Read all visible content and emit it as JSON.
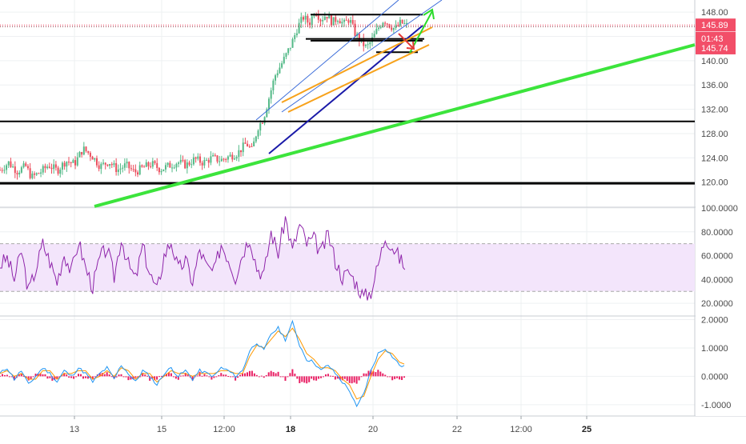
{
  "colors": {
    "background": "#ffffff",
    "grid": "#eef0f2",
    "bull_candle": "#53b987",
    "bear_candle": "#eb4d5c",
    "green_trend": "#3ce43c",
    "black_level": "#000000",
    "blue_channel": "#3b6cd9",
    "navy_trend": "#1a1aa8",
    "orange_channel": "#f7a21b",
    "current_price_tag": "#f24e68",
    "rsi_line": "#8e24aa",
    "rsi_band": "#f3e5fb",
    "macd_line": "#2196f3",
    "signal_line": "#ff9800",
    "histogram": "#e91e63",
    "arrow_green": "#2bdb2b",
    "arrow_red": "#e53935"
  },
  "chart_data": [
    {
      "type": "candlestick",
      "panel": "price",
      "y_range": [
        116.0,
        150.0
      ],
      "y_ticks": [
        "148.00",
        "144.00",
        "140.00",
        "136.00",
        "132.00",
        "128.00",
        "124.00",
        "120.00"
      ],
      "y_tick_values": [
        148,
        144,
        140,
        136,
        132,
        128,
        124,
        120
      ],
      "price_tags": [
        {
          "label": "145.89",
          "value": 145.89
        },
        {
          "label": "01:43",
          "value": 143.7
        },
        {
          "label": "145.74",
          "value": 142.1
        }
      ],
      "close_path": [
        [
          0,
          122.0
        ],
        [
          6,
          123.2
        ],
        [
          12,
          121.8
        ],
        [
          18,
          122.6
        ],
        [
          22,
          120.8
        ],
        [
          28,
          121.6
        ],
        [
          34,
          122.8
        ],
        [
          40,
          121.9
        ],
        [
          46,
          123.5
        ],
        [
          52,
          123.0
        ],
        [
          58,
          125.5
        ],
        [
          64,
          124.4
        ],
        [
          70,
          122.6
        ],
        [
          76,
          123.4
        ],
        [
          82,
          122.0
        ],
        [
          88,
          122.8
        ],
        [
          94,
          121.6
        ],
        [
          100,
          122.4
        ],
        [
          106,
          123.0
        ],
        [
          112,
          122.1
        ],
        [
          118,
          122.7
        ],
        [
          124,
          123.3
        ],
        [
          130,
          122.8
        ],
        [
          136,
          123.8
        ],
        [
          142,
          123.2
        ],
        [
          148,
          124.0
        ],
        [
          154,
          123.6
        ],
        [
          160,
          124.2
        ],
        [
          166,
          124.8
        ],
        [
          172,
          126.4
        ],
        [
          176,
          125.2
        ],
        [
          180,
          129.0
        ],
        [
          184,
          130.5
        ],
        [
          188,
          134.0
        ],
        [
          192,
          137.5
        ],
        [
          196,
          139.2
        ],
        [
          200,
          141.0
        ],
        [
          204,
          143.0
        ],
        [
          208,
          145.6
        ],
        [
          212,
          147.2
        ],
        [
          216,
          146.1
        ],
        [
          220,
          148.4
        ],
        [
          224,
          146.8
        ],
        [
          228,
          147.6
        ],
        [
          232,
          146.3
        ],
        [
          236,
          147.1
        ],
        [
          240,
          146.0
        ],
        [
          244,
          146.9
        ],
        [
          248,
          144.5
        ],
        [
          252,
          143.2
        ],
        [
          256,
          142.1
        ],
        [
          260,
          143.5
        ],
        [
          264,
          145.3
        ],
        [
          268,
          146.8
        ],
        [
          272,
          145.9
        ],
        [
          276,
          145.2
        ],
        [
          280,
          146.3
        ],
        [
          284,
          145.8
        ]
      ],
      "levels": [
        147.6,
        143.6,
        143.3,
        141.4,
        130.0,
        119.8
      ],
      "x_range": [
        0,
        500
      ]
    },
    {
      "type": "line",
      "panel": "rsi",
      "y_range": [
        10,
        100
      ],
      "y_ticks": [
        "100.0000",
        "80.0000",
        "60.0000",
        "40.0000",
        "20.0000"
      ],
      "y_tick_values": [
        100,
        80,
        60,
        40,
        20
      ],
      "band": [
        30,
        70
      ],
      "series": [
        {
          "values": [
            52,
            58,
            40,
            64,
            30,
            48,
            70,
            55,
            38,
            62,
            46,
            72,
            50,
            34,
            58,
            66,
            42,
            75,
            52,
            40,
            68,
            45,
            30,
            60,
            72,
            48,
            56,
            38,
            65,
            50,
            46,
            70,
            58,
            42,
            62,
            76,
            50,
            44,
            80,
            62,
            92,
            64,
            86,
            70,
            74,
            62,
            78,
            56,
            42,
            46,
            36,
            25,
            30,
            52,
            76,
            68,
            58,
            48
          ]
        }
      ]
    },
    {
      "type": "line",
      "panel": "macd",
      "y_range": [
        -1.4,
        2.1
      ],
      "y_ticks": [
        "2.0000",
        "1.0000",
        "0.0000",
        "-1.0000"
      ],
      "y_tick_values": [
        2,
        1,
        0,
        -1
      ],
      "series": [
        {
          "name": "",
          "values": [
            0.1,
            0.3,
            -0.1,
            0.2,
            -0.3,
            0.0,
            0.3,
            0.1,
            -0.2,
            0.2,
            0.0,
            0.3,
            0.1,
            -0.2,
            0.1,
            0.3,
            -0.1,
            0.4,
            0.1,
            -0.2,
            0.2,
            0.0,
            -0.3,
            0.1,
            0.3,
            0.0,
            0.2,
            -0.1,
            0.2,
            0.1,
            0.0,
            0.3,
            0.2,
            0.0,
            0.2,
            0.9,
            1.2,
            0.9,
            1.5,
            1.7,
            1.3,
            1.9,
            1.1,
            0.6,
            0.5,
            0.2,
            0.4,
            0.1,
            -0.2,
            -0.5,
            -1.1,
            -0.6,
            0.2,
            0.8,
            1.0,
            0.7,
            0.4,
            0.3
          ]
        },
        {
          "name": "",
          "values": [
            0.1,
            0.2,
            0.0,
            0.1,
            -0.1,
            -0.1,
            0.2,
            0.2,
            -0.1,
            0.1,
            0.1,
            0.2,
            0.2,
            -0.1,
            0.0,
            0.2,
            0.0,
            0.3,
            0.2,
            -0.1,
            0.1,
            0.1,
            -0.2,
            0.0,
            0.2,
            0.1,
            0.1,
            0.0,
            0.1,
            0.1,
            0.1,
            0.2,
            0.2,
            0.1,
            0.1,
            0.7,
            1.1,
            1.0,
            1.3,
            1.6,
            1.4,
            1.7,
            1.3,
            0.8,
            0.6,
            0.3,
            0.3,
            0.2,
            -0.1,
            -0.3,
            -0.8,
            -0.7,
            0.0,
            0.6,
            0.9,
            0.8,
            0.5,
            0.4
          ]
        }
      ]
    }
  ],
  "x_axis": {
    "labels": [
      {
        "text": "13",
        "bold": false,
        "x": 93
      },
      {
        "text": "15",
        "bold": false,
        "x": 202
      },
      {
        "text": "12:00",
        "bold": false,
        "x": 280
      },
      {
        "text": "18",
        "bold": true,
        "x": 363
      },
      {
        "text": "20",
        "bold": false,
        "x": 466
      },
      {
        "text": "22",
        "bold": false,
        "x": 571
      },
      {
        "text": "12:00",
        "bold": false,
        "x": 651
      },
      {
        "text": "25",
        "bold": true,
        "x": 733
      }
    ]
  }
}
